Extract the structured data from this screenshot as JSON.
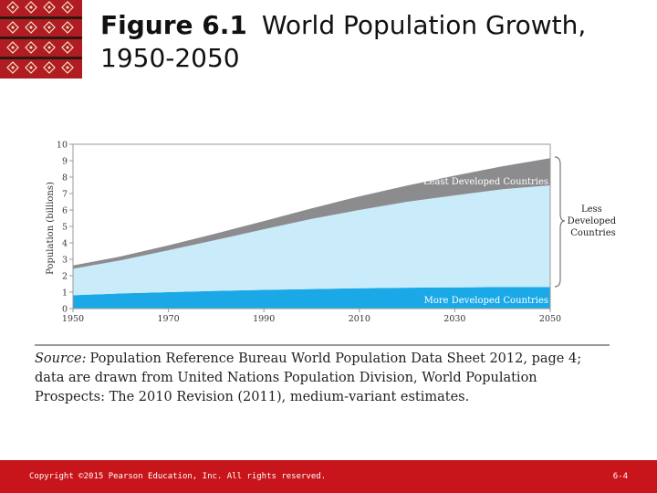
{
  "slide": {
    "title_bold": "Figure 6.1",
    "title_rest": "World Population Growth, 1950-2050",
    "source_label": "Source:",
    "source_text": "Population Reference Bureau World Population Data Sheet 2012, page 4; data are drawn from United Nations Population Division, World Population Prospects: The 2010 Revision (2011), medium-variant estimates.",
    "copyright": "Copyright ©2015 Pearson Education, Inc. All rights reserved.",
    "page_number": "6-4"
  },
  "colors": {
    "banner_red": "#c8151b",
    "logo_red": "#b01c22",
    "more_developed": "#1aa9e6",
    "less_developed": "#c9ebfa",
    "least_developed": "#8c8c8f"
  },
  "chart_data": {
    "type": "area",
    "stacked": true,
    "ylabel": "Population (billions)",
    "xlabel": "",
    "x": [
      1950,
      1960,
      1970,
      1980,
      1990,
      2000,
      2010,
      2020,
      2030,
      2040,
      2050
    ],
    "xticks": [
      "1950",
      "1970",
      "1990",
      "2010",
      "2030",
      "2050"
    ],
    "yticks": [
      0,
      1,
      2,
      3,
      4,
      5,
      6,
      7,
      8,
      9,
      10
    ],
    "ylim": [
      0,
      10
    ],
    "series": [
      {
        "name": "More Developed Countries",
        "values": [
          0.81,
          0.92,
          1.0,
          1.08,
          1.14,
          1.19,
          1.24,
          1.27,
          1.29,
          1.31,
          1.31
        ]
      },
      {
        "name": "",
        "values": [
          1.61,
          2.02,
          2.55,
          3.1,
          3.69,
          4.27,
          4.76,
          5.23,
          5.6,
          5.95,
          6.19
        ]
      },
      {
        "name": "Least Developed Countries",
        "values": [
          0.2,
          0.23,
          0.3,
          0.39,
          0.5,
          0.64,
          0.83,
          0.99,
          1.2,
          1.4,
          1.65
        ]
      }
    ],
    "brace_label": "Less Developed Countries",
    "grid": false
  }
}
